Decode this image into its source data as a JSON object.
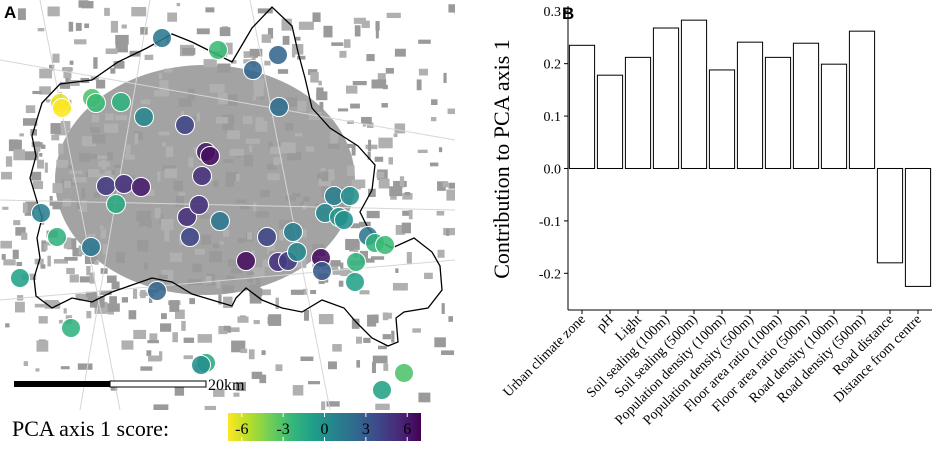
{
  "panels": {
    "a_label": "A",
    "b_label": "B"
  },
  "map": {
    "scale_bar_label": "20km",
    "legend_title": "PCA axis 1 score:",
    "legend_ticks": [
      "-6",
      "-3",
      "0",
      "3",
      "6"
    ],
    "legend_range": [
      -7,
      7
    ],
    "palette": [
      "#fde725",
      "#b5de2b",
      "#6ece58",
      "#35b779",
      "#1f9e89",
      "#26828e",
      "#31688e",
      "#3e4989",
      "#482878",
      "#440154"
    ],
    "background_fill": "#9e9e9e",
    "boundary_color": "#000000"
  },
  "chart_data": {
    "type": "bar",
    "title": "",
    "xlabel": "",
    "ylabel": "Contribution to PCA axis 1",
    "ylim": [
      -0.27,
      0.31
    ],
    "yticks": [
      -0.2,
      -0.1,
      0.0,
      0.1,
      0.2,
      0.3
    ],
    "ytick_labels": [
      "-0.2",
      "-0.1",
      "0.0",
      "0.1",
      "0.2",
      "0.3"
    ],
    "categories": [
      "Urban climate zone",
      "pH",
      "Light",
      "Soil sealing (100m)",
      "Soil sealing (500m)",
      "Population density (100m)",
      "Population density (500m)",
      "Floor area ratio (100m)",
      "Floor area ratio (500m)",
      "Road density (100m)",
      "Road density (500m)",
      "Road distance",
      "Distance from centre"
    ],
    "values": [
      0.235,
      0.178,
      0.212,
      0.268,
      0.283,
      0.188,
      0.241,
      0.212,
      0.239,
      0.199,
      0.262,
      -0.18,
      -0.225
    ],
    "bar_fill": "#ffffff",
    "bar_stroke": "#000000"
  }
}
